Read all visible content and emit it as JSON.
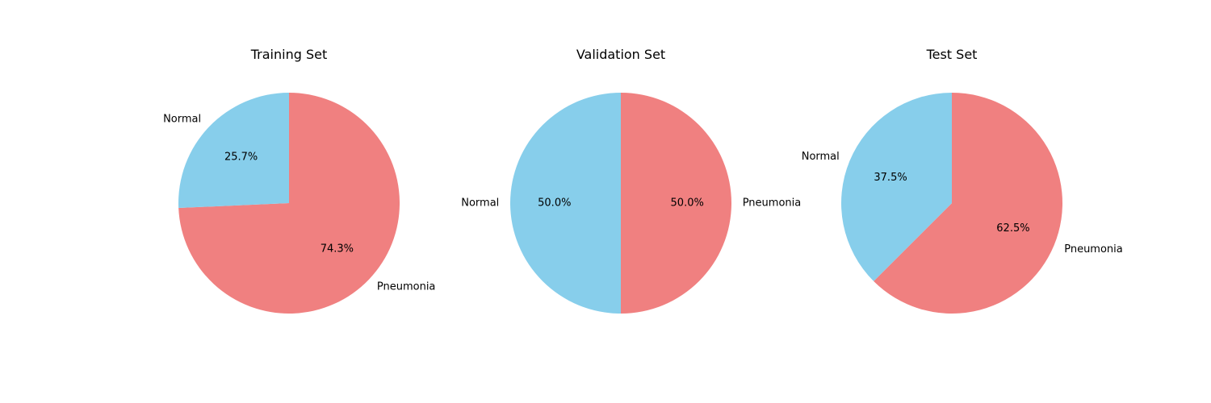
{
  "chart_data": [
    {
      "type": "pie",
      "title": "Training Set",
      "categories": [
        "Normal",
        "Pneumonia"
      ],
      "values": [
        25.7,
        74.3
      ],
      "labels": [
        "25.7%",
        "74.3%"
      ],
      "colors": [
        "#87CEEB",
        "#F08080"
      ],
      "start_angle": 90,
      "direction": "counterclockwise"
    },
    {
      "type": "pie",
      "title": "Validation Set",
      "categories": [
        "Normal",
        "Pneumonia"
      ],
      "values": [
        50.0,
        50.0
      ],
      "labels": [
        "50.0%",
        "50.0%"
      ],
      "colors": [
        "#87CEEB",
        "#F08080"
      ],
      "start_angle": 90,
      "direction": "counterclockwise"
    },
    {
      "type": "pie",
      "title": "Test Set",
      "categories": [
        "Normal",
        "Pneumonia"
      ],
      "values": [
        37.5,
        62.5
      ],
      "labels": [
        "37.5%",
        "62.5%"
      ],
      "colors": [
        "#87CEEB",
        "#F08080"
      ],
      "start_angle": 90,
      "direction": "counterclockwise"
    }
  ]
}
